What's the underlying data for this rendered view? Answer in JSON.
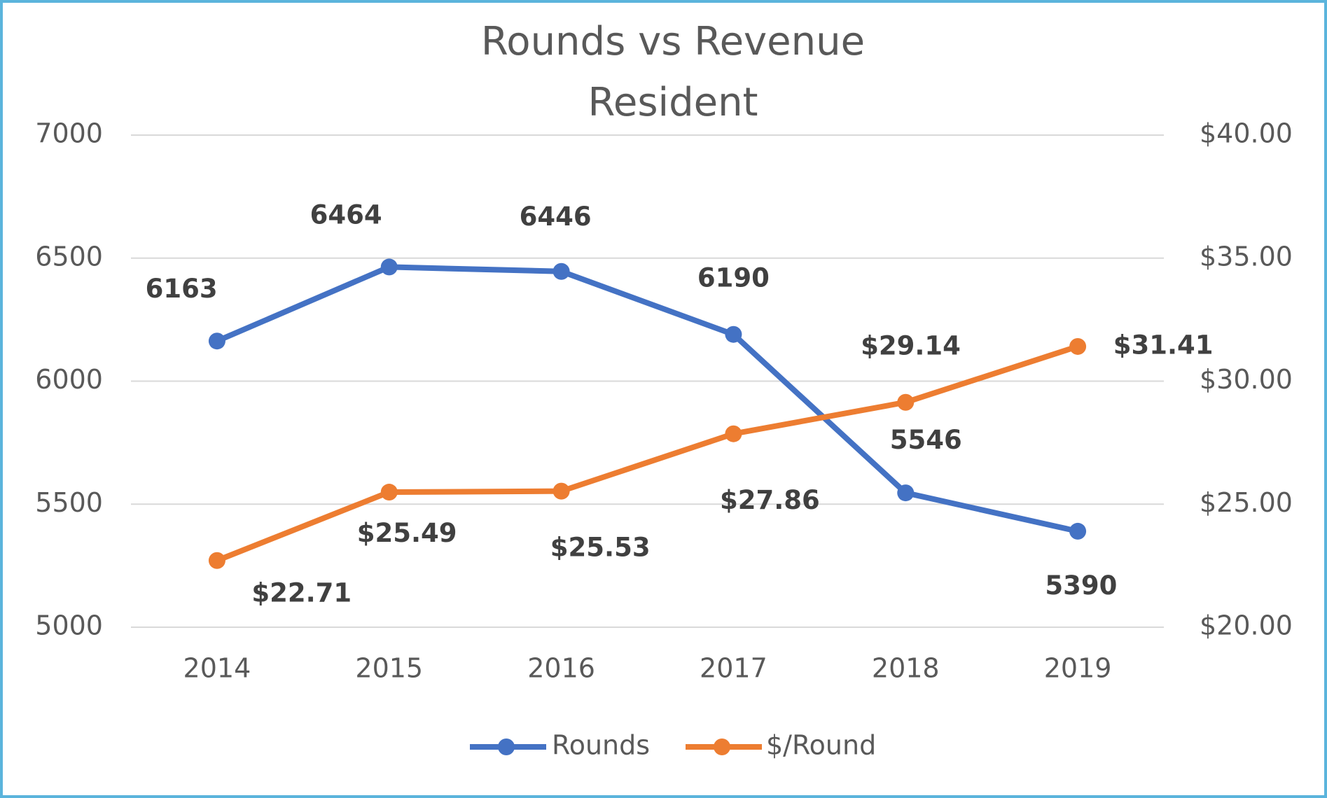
{
  "chart_data": {
    "type": "line",
    "title": "Rounds vs Revenue",
    "subtitle": "Resident",
    "categories": [
      "2014",
      "2015",
      "2016",
      "2017",
      "2018",
      "2019"
    ],
    "series": [
      {
        "name": "Rounds",
        "color": "#4472c4",
        "values": [
          6163,
          6464,
          6446,
          6190,
          5546,
          5390
        ]
      },
      {
        "name": "$/Round",
        "color": "#ed7d31",
        "axis": "y2",
        "values": [
          22.71,
          25.49,
          25.53,
          27.86,
          29.14,
          31.41
        ],
        "value_labels": [
          "$22.71",
          "$25.49",
          "$25.53",
          "$27.86",
          "$29.14",
          "$31.41"
        ]
      }
    ],
    "ylim": [
      5000,
      7000
    ],
    "yticks": [
      5000,
      5500,
      6000,
      6500,
      7000
    ],
    "y2lim": [
      20,
      40
    ],
    "y2ticks": [
      {
        "value": 20,
        "label": "$20.00"
      },
      {
        "value": 25,
        "label": "$25.00"
      },
      {
        "value": 30,
        "label": "$30.00"
      },
      {
        "value": 35,
        "label": "$35.00"
      },
      {
        "value": 40,
        "label": "$40.00"
      }
    ],
    "grid": true,
    "legend": "bottom"
  }
}
